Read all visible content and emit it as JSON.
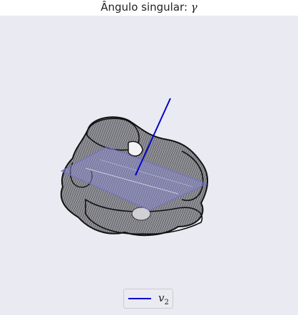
{
  "chart_data": {
    "type": "3d-surface",
    "title_prefix": "Ângulo singular: ",
    "title_symbol": "γ",
    "legend": {
      "placement": "bottom-center",
      "entries": [
        {
          "symbol": "v",
          "subscript": "2",
          "color": "#0000cc"
        }
      ]
    },
    "colors": {
      "background": "#eaeaf2",
      "mesh": "#1a1a1a",
      "plane": "#8c8cd9",
      "vector": "#0000cc"
    },
    "axes_visible": false,
    "grid": false
  }
}
